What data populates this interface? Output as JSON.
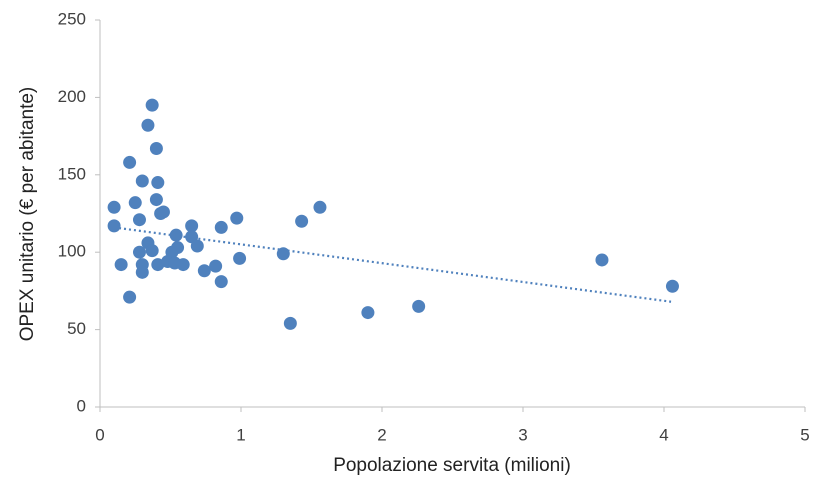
{
  "chart_data": {
    "type": "scatter",
    "x_label": "Popolazione servita (milioni)",
    "y_label": "OPEX unitario (€ per abitante)",
    "xlim": [
      0,
      5
    ],
    "xticks": [
      0,
      1,
      2,
      3,
      4,
      5
    ],
    "ylim": [
      0,
      250
    ],
    "yticks": [
      0,
      50,
      100,
      150,
      200,
      250
    ],
    "grid": false,
    "series": [
      {
        "color": "#4f81bd",
        "x": [
          0.1,
          0.1,
          0.15,
          0.21,
          0.21,
          0.25,
          0.28,
          0.28,
          0.3,
          0.3,
          0.3,
          0.34,
          0.34,
          0.37,
          0.37,
          0.4,
          0.4,
          0.41,
          0.41,
          0.43,
          0.45,
          0.48,
          0.51,
          0.53,
          0.54,
          0.55,
          0.59,
          0.65,
          0.65,
          0.69,
          0.74,
          0.82,
          0.86,
          0.86,
          0.97,
          0.99,
          1.3,
          1.35,
          1.43,
          1.56,
          1.9,
          2.26,
          3.56,
          4.06
        ],
        "values": [
          129,
          117,
          92,
          71,
          158,
          132,
          121,
          100,
          146,
          92,
          87,
          182,
          106,
          195,
          101,
          167,
          134,
          145,
          92,
          125,
          126,
          94,
          100,
          93,
          111,
          103,
          92,
          117,
          110,
          104,
          88,
          91,
          81,
          116,
          122,
          96,
          99,
          54,
          120,
          129,
          61,
          65,
          95,
          78
        ]
      }
    ],
    "trendline": {
      "color": "#4f81bd",
      "x": [
        0.1,
        4.05
      ],
      "values": [
        116,
        68
      ]
    }
  }
}
